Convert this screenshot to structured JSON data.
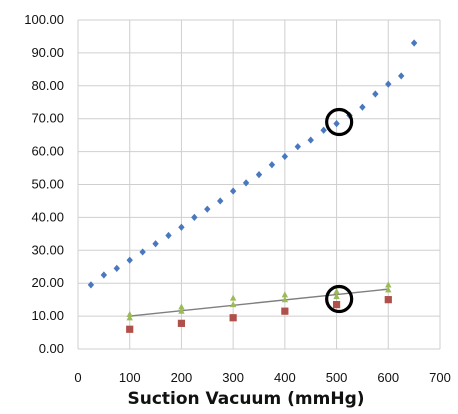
{
  "chart_data": {
    "type": "scatter",
    "xlabel": "Suction Vacuum (mmHg)",
    "ylabel": "",
    "xlim": [
      0,
      700
    ],
    "ylim": [
      0,
      100
    ],
    "x_ticks": [
      "0",
      "100",
      "200",
      "300",
      "400",
      "500",
      "600",
      "700"
    ],
    "y_ticks": [
      "0.00",
      "10.00",
      "20.00",
      "30.00",
      "40.00",
      "50.00",
      "60.00",
      "70.00",
      "80.00",
      "90.00",
      "100.00"
    ],
    "grid": true,
    "legend": "none",
    "series": [
      {
        "marker": "diamond",
        "color": "#4a78be",
        "points": [
          [
            25,
            19.5
          ],
          [
            50,
            22.5
          ],
          [
            75,
            24.5
          ],
          [
            100,
            27
          ],
          [
            125,
            29.5
          ],
          [
            150,
            32
          ],
          [
            175,
            34.5
          ],
          [
            200,
            37
          ],
          [
            225,
            40
          ],
          [
            250,
            42.5
          ],
          [
            275,
            45
          ],
          [
            300,
            48
          ],
          [
            325,
            50.5
          ],
          [
            350,
            53
          ],
          [
            375,
            56
          ],
          [
            400,
            58.5
          ],
          [
            425,
            61.5
          ],
          [
            450,
            63.5
          ],
          [
            475,
            66.5
          ],
          [
            500,
            68.5
          ],
          [
            525,
            71
          ],
          [
            550,
            73.5
          ],
          [
            575,
            77.5
          ],
          [
            600,
            80.5
          ],
          [
            625,
            83
          ],
          [
            650,
            93
          ]
        ]
      },
      {
        "marker": "square",
        "color": "#b0504a",
        "points": [
          [
            100,
            6
          ],
          [
            200,
            7.8
          ],
          [
            300,
            9.5
          ],
          [
            400,
            11.5
          ],
          [
            500,
            13.5
          ],
          [
            600,
            15
          ]
        ]
      },
      {
        "marker": "triangle",
        "color": "#9bbb59",
        "points": [
          [
            100,
            10.5
          ],
          [
            100,
            9.5
          ],
          [
            200,
            12.8
          ],
          [
            200,
            11.5
          ],
          [
            300,
            15.5
          ],
          [
            300,
            13.5
          ],
          [
            400,
            16.5
          ],
          [
            400,
            15
          ],
          [
            500,
            17.5
          ],
          [
            500,
            16
          ],
          [
            600,
            19.5
          ],
          [
            600,
            18
          ]
        ]
      }
    ],
    "trendline": {
      "color": "#7f7f7f",
      "from": [
        100,
        10
      ],
      "to": [
        600,
        18.2
      ]
    },
    "highlight_circles": [
      {
        "x": 505,
        "y": 69
      },
      {
        "x": 505,
        "y": 15.2
      }
    ]
  }
}
